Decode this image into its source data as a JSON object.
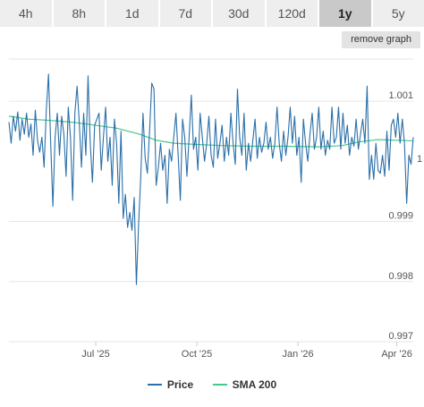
{
  "tabs": [
    {
      "label": "4h",
      "active": false
    },
    {
      "label": "8h",
      "active": false
    },
    {
      "label": "1d",
      "active": false
    },
    {
      "label": "7d",
      "active": false
    },
    {
      "label": "30d",
      "active": false
    },
    {
      "label": "120d",
      "active": false
    },
    {
      "label": "1y",
      "active": true
    },
    {
      "label": "5y",
      "active": false
    }
  ],
  "remove_graph_label": "remove graph",
  "legend": {
    "price": "Price",
    "sma": "SMA 200"
  },
  "colors": {
    "price": "#2a6fa8",
    "sma": "#45c98a",
    "grid": "#e6e6e6",
    "active_tab": "#c9c9c9",
    "tab": "#eeeeee"
  },
  "chart_data": {
    "type": "line",
    "xlabel": "",
    "ylabel": "",
    "ylim": [
      0.997,
      1.0017
    ],
    "xlim": [
      "2025-04-13",
      "2026-04-16"
    ],
    "x_ticks": [
      {
        "date": "2025-07-01",
        "label": "Jul '25"
      },
      {
        "date": "2025-10-01",
        "label": "Oct '25"
      },
      {
        "date": "2026-01-01",
        "label": "Jan '26"
      },
      {
        "date": "2026-04-01",
        "label": "Apr '26"
      }
    ],
    "y_ticks": [
      {
        "value": 1.001,
        "label": "1.001"
      },
      {
        "value": 0.999,
        "label": "0.999"
      },
      {
        "value": 0.998,
        "label": "0.998"
      },
      {
        "value": 0.997,
        "label": "0.997"
      }
    ],
    "right_edge_label": "1",
    "grid": true,
    "legend_position": "bottom",
    "series": [
      {
        "name": "Price",
        "points": [
          [
            "2025-04-13",
            1.00065
          ],
          [
            "2025-04-15",
            1.0003
          ],
          [
            "2025-04-17",
            1.00075
          ],
          [
            "2025-04-19",
            1.0005
          ],
          [
            "2025-04-21",
            1.00082
          ],
          [
            "2025-04-23",
            1.00035
          ],
          [
            "2025-04-25",
            1.0007
          ],
          [
            "2025-04-27",
            1.00045
          ],
          [
            "2025-04-29",
            1.0008
          ],
          [
            "2025-05-01",
            1.0004
          ],
          [
            "2025-05-03",
            1.00062
          ],
          [
            "2025-05-05",
            1.0001
          ],
          [
            "2025-05-07",
            1.00085
          ],
          [
            "2025-05-09",
            1.00035
          ],
          [
            "2025-05-11",
            1.00015
          ],
          [
            "2025-05-13",
            1.0004
          ],
          [
            "2025-05-15",
            0.9999
          ],
          [
            "2025-05-17",
            1.00085
          ],
          [
            "2025-05-19",
            1.00145
          ],
          [
            "2025-05-21",
            1.0003
          ],
          [
            "2025-05-23",
            0.99925
          ],
          [
            "2025-05-25",
            1.0004
          ],
          [
            "2025-05-27",
            1.0008
          ],
          [
            "2025-05-29",
            1.0001
          ],
          [
            "2025-05-31",
            1.00075
          ],
          [
            "2025-06-02",
            1.00045
          ],
          [
            "2025-06-04",
            0.99975
          ],
          [
            "2025-06-06",
            1.0009
          ],
          [
            "2025-06-08",
            1.0004
          ],
          [
            "2025-06-10",
            0.99935
          ],
          [
            "2025-06-12",
            1.0008
          ],
          [
            "2025-06-14",
            1.00125
          ],
          [
            "2025-06-16",
            1.00065
          ],
          [
            "2025-06-18",
            0.9999
          ],
          [
            "2025-06-20",
            1.0008
          ],
          [
            "2025-06-22",
            1.0001
          ],
          [
            "2025-06-24",
            1.00142
          ],
          [
            "2025-06-26",
            1.0003
          ],
          [
            "2025-06-28",
            0.99965
          ],
          [
            "2025-06-30",
            1.0006
          ],
          [
            "2025-07-02",
            1.0007
          ],
          [
            "2025-07-04",
            1.0008
          ],
          [
            "2025-07-06",
            0.99985
          ],
          [
            "2025-07-08",
            1.0004
          ],
          [
            "2025-07-10",
            1.0009
          ],
          [
            "2025-07-12",
            1.0
          ],
          [
            "2025-07-14",
            1.0004
          ],
          [
            "2025-07-16",
            0.9996
          ],
          [
            "2025-07-18",
            1.0007
          ],
          [
            "2025-07-20",
            1.0003
          ],
          [
            "2025-07-22",
            0.9993
          ],
          [
            "2025-07-24",
            1.0005
          ],
          [
            "2025-07-26",
            0.99905
          ],
          [
            "2025-07-28",
            0.99945
          ],
          [
            "2025-07-30",
            0.9989
          ],
          [
            "2025-08-01",
            0.99915
          ],
          [
            "2025-08-03",
            0.99885
          ],
          [
            "2025-08-05",
            0.9994
          ],
          [
            "2025-08-07",
            0.99795
          ],
          [
            "2025-08-09",
            0.99895
          ],
          [
            "2025-08-11",
            0.99975
          ],
          [
            "2025-08-13",
            1.0008
          ],
          [
            "2025-08-15",
            1.00005
          ],
          [
            "2025-08-17",
            0.9998
          ],
          [
            "2025-08-19",
            1.0005
          ],
          [
            "2025-08-21",
            1.0013
          ],
          [
            "2025-08-23",
            1.0012
          ],
          [
            "2025-08-25",
            0.9996
          ],
          [
            "2025-08-27",
            0.9999
          ],
          [
            "2025-08-29",
            1.0003
          ],
          [
            "2025-08-31",
            0.99985
          ],
          [
            "2025-09-02",
            1.0001
          ],
          [
            "2025-09-04",
            0.9993
          ],
          [
            "2025-09-06",
            1.0002
          ],
          [
            "2025-09-08",
            1.0
          ],
          [
            "2025-09-10",
            1.0004
          ],
          [
            "2025-09-12",
            1.0008
          ],
          [
            "2025-09-14",
            1.0001
          ],
          [
            "2025-09-16",
            0.99935
          ],
          [
            "2025-09-18",
            1.0007
          ],
          [
            "2025-09-20",
            1.0004
          ],
          [
            "2025-09-22",
            0.99975
          ],
          [
            "2025-09-24",
            1.0004
          ],
          [
            "2025-09-26",
            1.0011
          ],
          [
            "2025-09-28",
            1.0002
          ],
          [
            "2025-09-30",
            1.0004
          ],
          [
            "2025-10-02",
            0.99985
          ],
          [
            "2025-10-04",
            1.0008
          ],
          [
            "2025-10-06",
            1.0004
          ],
          [
            "2025-10-08",
            1.0
          ],
          [
            "2025-10-10",
            1.0003
          ],
          [
            "2025-10-12",
            1.00075
          ],
          [
            "2025-10-14",
            1.0001
          ],
          [
            "2025-10-16",
            0.9999
          ],
          [
            "2025-10-18",
            1.0007
          ],
          [
            "2025-10-20",
            1.00005
          ],
          [
            "2025-10-22",
            1.0003
          ],
          [
            "2025-10-24",
            1.0006
          ],
          [
            "2025-10-26",
            1.0
          ],
          [
            "2025-10-28",
            1.0004
          ],
          [
            "2025-10-30",
            1.0001
          ],
          [
            "2025-11-01",
            1.0008
          ],
          [
            "2025-11-03",
            1.0003
          ],
          [
            "2025-11-05",
            0.99995
          ],
          [
            "2025-11-07",
            1.0012
          ],
          [
            "2025-11-09",
            1.0004
          ],
          [
            "2025-11-11",
            1.0001
          ],
          [
            "2025-11-13",
            1.0008
          ],
          [
            "2025-11-15",
            0.99985
          ],
          [
            "2025-11-17",
            1.0003
          ],
          [
            "2025-11-19",
            1.0
          ],
          [
            "2025-11-21",
            1.00035
          ],
          [
            "2025-11-23",
            1.0007
          ],
          [
            "2025-11-25",
            1.00005
          ],
          [
            "2025-11-27",
            1.0004
          ],
          [
            "2025-11-29",
            1.00015
          ],
          [
            "2025-12-01",
            1.0003
          ],
          [
            "2025-12-03",
            1.00065
          ],
          [
            "2025-12-05",
            1.0002
          ],
          [
            "2025-12-07",
            1.0004
          ],
          [
            "2025-12-09",
            1.00005
          ],
          [
            "2025-12-11",
            1.0003
          ],
          [
            "2025-12-13",
            1.0009
          ],
          [
            "2025-12-15",
            1.0003
          ],
          [
            "2025-12-17",
            1.0
          ],
          [
            "2025-12-19",
            1.0005
          ],
          [
            "2025-12-21",
            1.0001
          ],
          [
            "2025-12-23",
            1.0004
          ],
          [
            "2025-12-25",
            1.0009
          ],
          [
            "2025-12-27",
            1.0003
          ],
          [
            "2025-12-29",
            1.00075
          ],
          [
            "2025-12-31",
            1.0001
          ],
          [
            "2026-01-02",
            1.0004
          ],
          [
            "2026-01-04",
            0.99965
          ],
          [
            "2026-01-06",
            1.0007
          ],
          [
            "2026-01-08",
            1.0003
          ],
          [
            "2026-01-10",
            1.0
          ],
          [
            "2026-01-12",
            1.00045
          ],
          [
            "2026-01-14",
            1.0008
          ],
          [
            "2026-01-16",
            1.0002
          ],
          [
            "2026-01-18",
            1.0004
          ],
          [
            "2026-01-20",
            1.0009
          ],
          [
            "2026-01-22",
            1.0002
          ],
          [
            "2026-01-24",
            1.0005
          ],
          [
            "2026-01-26",
            1.0001
          ],
          [
            "2026-01-28",
            1.00035
          ],
          [
            "2026-01-30",
            1.0002
          ],
          [
            "2026-02-01",
            1.0009
          ],
          [
            "2026-02-03",
            1.0003
          ],
          [
            "2026-02-05",
            1.0004
          ],
          [
            "2026-02-07",
            1.0009
          ],
          [
            "2026-02-09",
            1.0002
          ],
          [
            "2026-02-11",
            1.0008
          ],
          [
            "2026-02-13",
            1.0003
          ],
          [
            "2026-02-15",
            1.0006
          ],
          [
            "2026-02-17",
            1.0001
          ],
          [
            "2026-02-19",
            1.0004
          ],
          [
            "2026-02-21",
            1.00025
          ],
          [
            "2026-02-23",
            1.0007
          ],
          [
            "2026-02-25",
            1.0002
          ],
          [
            "2026-02-27",
            1.00045
          ],
          [
            "2026-03-01",
            1.0007
          ],
          [
            "2026-03-03",
            1.0003
          ],
          [
            "2026-03-05",
            1.00125
          ],
          [
            "2026-03-07",
            0.9997
          ],
          [
            "2026-03-09",
            1.0001
          ],
          [
            "2026-03-11",
            0.9997
          ],
          [
            "2026-03-13",
            1.0003
          ],
          [
            "2026-03-15",
            0.99985
          ],
          [
            "2026-03-17",
            0.9998
          ],
          [
            "2026-03-19",
            1.0001
          ],
          [
            "2026-03-21",
            0.99975
          ],
          [
            "2026-03-23",
            1.0005
          ],
          [
            "2026-03-25",
            0.99985
          ],
          [
            "2026-03-27",
            1.0006
          ],
          [
            "2026-03-29",
            1.0007
          ],
          [
            "2026-03-31",
            1.0004
          ],
          [
            "2026-04-02",
            1.0008
          ],
          [
            "2026-04-04",
            1.0003
          ],
          [
            "2026-04-06",
            1.0007
          ],
          [
            "2026-04-08",
            1.0003
          ],
          [
            "2026-04-10",
            0.9993
          ],
          [
            "2026-04-12",
            1.0001
          ],
          [
            "2026-04-14",
            0.99995
          ],
          [
            "2026-04-16",
            1.0004
          ]
        ]
      },
      {
        "name": "SMA 200",
        "points": [
          [
            "2025-04-13",
            1.00075
          ],
          [
            "2025-05-01",
            1.0007
          ],
          [
            "2025-05-20",
            1.00068
          ],
          [
            "2025-06-10",
            1.00065
          ],
          [
            "2025-06-30",
            1.0006
          ],
          [
            "2025-07-20",
            1.00055
          ],
          [
            "2025-08-10",
            1.00045
          ],
          [
            "2025-08-25",
            1.00035
          ],
          [
            "2025-09-10",
            1.0003
          ],
          [
            "2025-10-01",
            1.00028
          ],
          [
            "2025-10-25",
            1.00026
          ],
          [
            "2025-11-20",
            1.00025
          ],
          [
            "2025-12-20",
            1.00025
          ],
          [
            "2026-01-20",
            1.00024
          ],
          [
            "2026-02-10",
            1.00026
          ],
          [
            "2026-02-25",
            1.00032
          ],
          [
            "2026-03-15",
            1.00036
          ],
          [
            "2026-04-16",
            1.00034
          ]
        ]
      }
    ]
  }
}
